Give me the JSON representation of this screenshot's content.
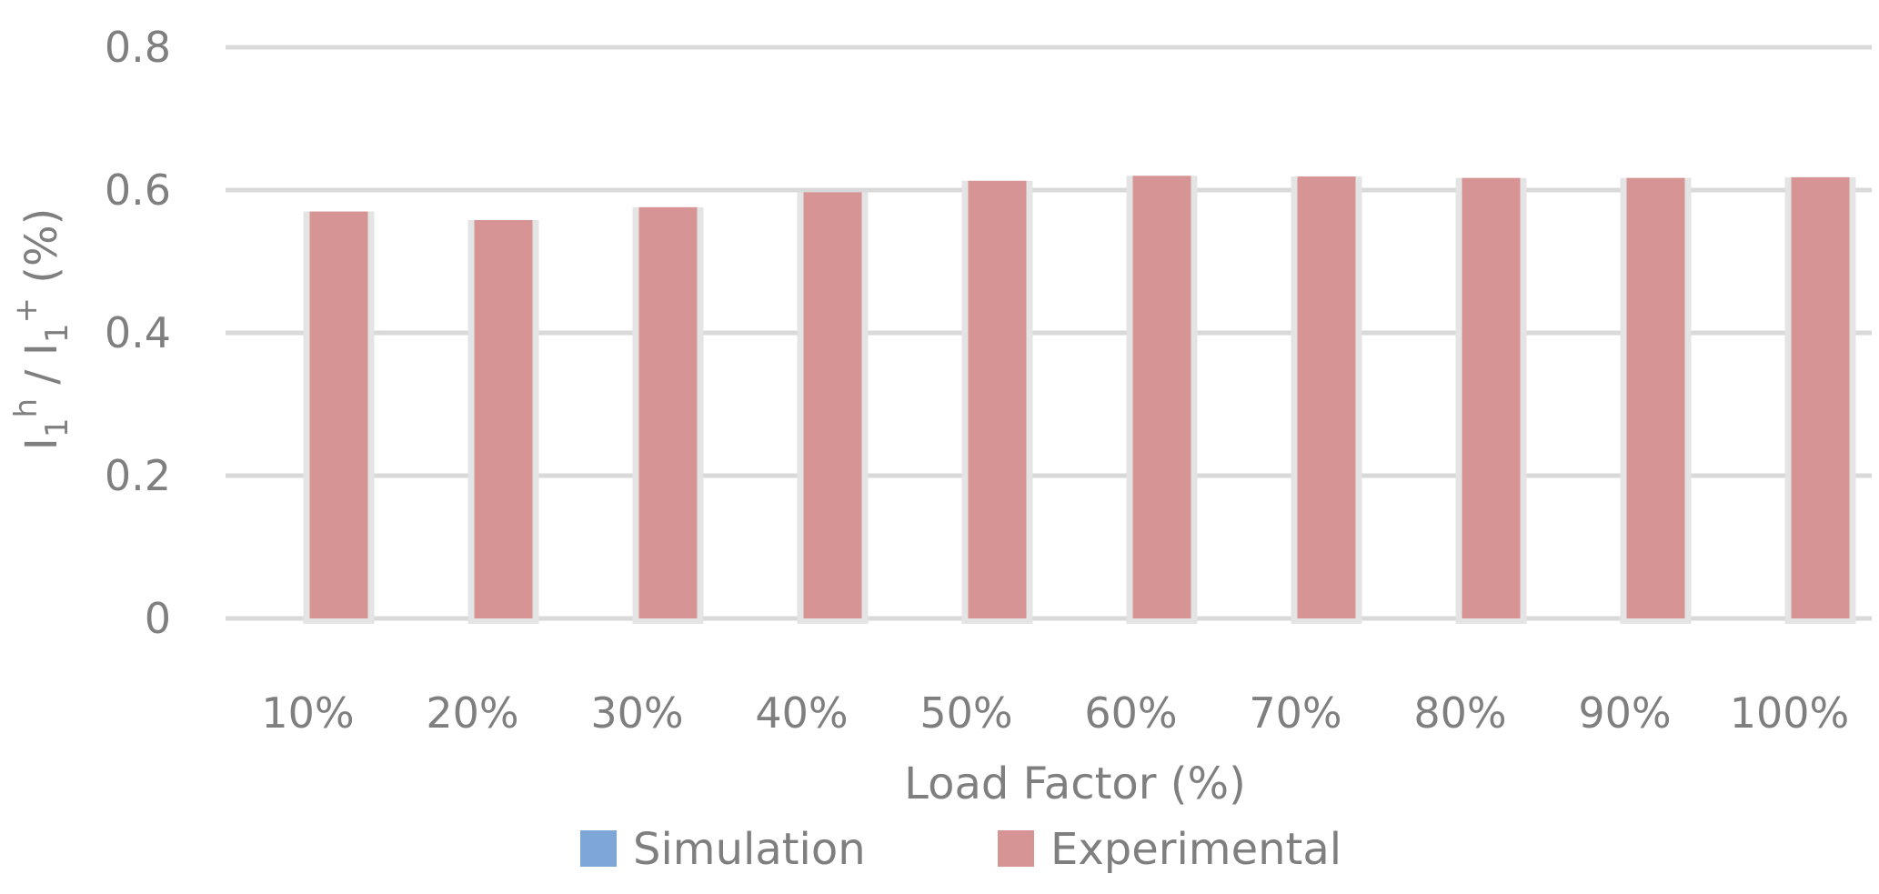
{
  "chart_data": {
    "type": "bar",
    "categories": [
      "10%",
      "20%",
      "30%",
      "40%",
      "50%",
      "60%",
      "70%",
      "80%",
      "90%",
      "100%"
    ],
    "series": [
      {
        "name": "Simulation",
        "color": "#7ea6d6",
        "values": [
          0,
          0,
          0,
          0,
          0,
          0,
          0,
          0,
          0,
          0
        ]
      },
      {
        "name": "Experimental",
        "color": "#d69494",
        "values": [
          0.57,
          0.558,
          0.576,
          0.597,
          0.613,
          0.62,
          0.619,
          0.617,
          0.617,
          0.618
        ]
      }
    ],
    "xlabel": "Load Factor (%)",
    "ylabel": {
      "base": "I",
      "sub1": "1",
      "sup1": "h",
      "sep": " / I",
      "sub2": "1",
      "sup2": "+",
      "unit": "(%)"
    },
    "ylim": [
      0,
      0.8
    ],
    "yticks": [
      "0",
      "0.2",
      "0.4",
      "0.6",
      "0.8"
    ],
    "ytick_values": [
      0,
      0.2,
      0.4,
      0.6,
      0.8
    ],
    "grid": true,
    "legend_position": "bottom",
    "gridline_color": "#d9d9d9"
  }
}
